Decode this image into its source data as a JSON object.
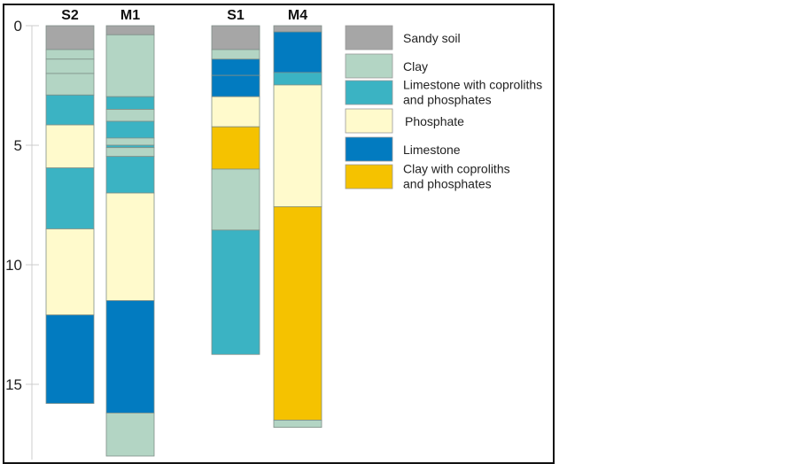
{
  "lithology": {
    "Sandy soil": "#a6a6a6",
    "Clay": "#b3d5c4",
    "Limestone with coproliths and phosphates": "#3bb3c3",
    "Phosphate": "#fffacc",
    "Limestone": "#027bc0",
    "Clay with coproliths and phosphates": "#f5c200"
  },
  "axis": {
    "ticks": [
      "0",
      "5",
      "10",
      "15"
    ],
    "range": [
      0,
      18
    ]
  },
  "legend": [
    {
      "key": "Sandy soil",
      "lines": [
        "Sandy soil"
      ]
    },
    {
      "key": "Clay",
      "lines": [
        "Clay"
      ]
    },
    {
      "key": "Limestone with coproliths and phosphates",
      "lines": [
        "Limestone with coproliths",
        "and phosphates"
      ]
    },
    {
      "key": "Phosphate",
      "lines": [
        "Phosphate"
      ]
    },
    {
      "key": "Limestone",
      "lines": [
        "Limestone"
      ]
    },
    {
      "key": "Clay with coproliths and phosphates",
      "lines": [
        "Clay with coproliths",
        "and phosphates"
      ]
    }
  ],
  "columns": [
    {
      "name": "S2",
      "layers": [
        {
          "top": 0,
          "bottom": 1.0,
          "type": "Sandy soil"
        },
        {
          "top": 1.0,
          "bottom": 1.4,
          "type": "Clay"
        },
        {
          "top": 1.4,
          "bottom": 2.0,
          "type": "Clay"
        },
        {
          "top": 2.0,
          "bottom": 2.9,
          "type": "Clay"
        },
        {
          "top": 2.9,
          "bottom": 4.15,
          "type": "Limestone with coproliths and phosphates"
        },
        {
          "top": 4.15,
          "bottom": 5.95,
          "type": "Phosphate"
        },
        {
          "top": 5.95,
          "bottom": 8.5,
          "type": "Limestone with coproliths and phosphates"
        },
        {
          "top": 8.5,
          "bottom": 12.1,
          "type": "Phosphate"
        },
        {
          "top": 12.1,
          "bottom": 15.8,
          "type": "Limestone"
        }
      ]
    },
    {
      "name": "M1",
      "layers": [
        {
          "top": 0,
          "bottom": 0.38,
          "type": "Sandy soil"
        },
        {
          "top": 0.38,
          "bottom": 2.97,
          "type": "Clay"
        },
        {
          "top": 2.97,
          "bottom": 3.5,
          "type": "Limestone with coproliths and phosphates"
        },
        {
          "top": 3.5,
          "bottom": 4.0,
          "type": "Clay"
        },
        {
          "top": 4.0,
          "bottom": 4.7,
          "type": "Limestone with coproliths and phosphates"
        },
        {
          "top": 4.7,
          "bottom": 5.0,
          "type": "Clay"
        },
        {
          "top": 5.0,
          "bottom": 5.1,
          "type": "Limestone with coproliths and phosphates"
        },
        {
          "top": 5.1,
          "bottom": 5.47,
          "type": "Clay"
        },
        {
          "top": 5.47,
          "bottom": 7.0,
          "type": "Limestone with coproliths and phosphates"
        },
        {
          "top": 7.0,
          "bottom": 11.5,
          "type": "Phosphate"
        },
        {
          "top": 11.5,
          "bottom": 16.2,
          "type": "Limestone"
        },
        {
          "top": 16.2,
          "bottom": 18.0,
          "type": "Clay"
        }
      ]
    },
    {
      "name": "S1",
      "layers": [
        {
          "top": 0,
          "bottom": 1.0,
          "type": "Sandy soil"
        },
        {
          "top": 1.0,
          "bottom": 1.4,
          "type": "Clay"
        },
        {
          "top": 1.4,
          "bottom": 2.08,
          "type": "Limestone"
        },
        {
          "top": 2.08,
          "bottom": 2.97,
          "type": "Limestone"
        },
        {
          "top": 2.97,
          "bottom": 4.23,
          "type": "Phosphate"
        },
        {
          "top": 4.23,
          "bottom": 6.0,
          "type": "Clay with coproliths and phosphates"
        },
        {
          "top": 6.0,
          "bottom": 8.55,
          "type": "Clay"
        },
        {
          "top": 8.55,
          "bottom": 13.75,
          "type": "Limestone with coproliths and phosphates"
        }
      ]
    },
    {
      "name": "M4",
      "layers": [
        {
          "top": 0,
          "bottom": 0.26,
          "type": "Sandy soil"
        },
        {
          "top": 0.26,
          "bottom": 1.96,
          "type": "Limestone"
        },
        {
          "top": 1.96,
          "bottom": 2.48,
          "type": "Limestone with coproliths and phosphates"
        },
        {
          "top": 2.48,
          "bottom": 7.57,
          "type": "Phosphate"
        },
        {
          "top": 7.57,
          "bottom": 16.5,
          "type": "Clay with coproliths and phosphates"
        },
        {
          "top": 16.5,
          "bottom": 16.8,
          "type": "Clay"
        }
      ]
    }
  ]
}
